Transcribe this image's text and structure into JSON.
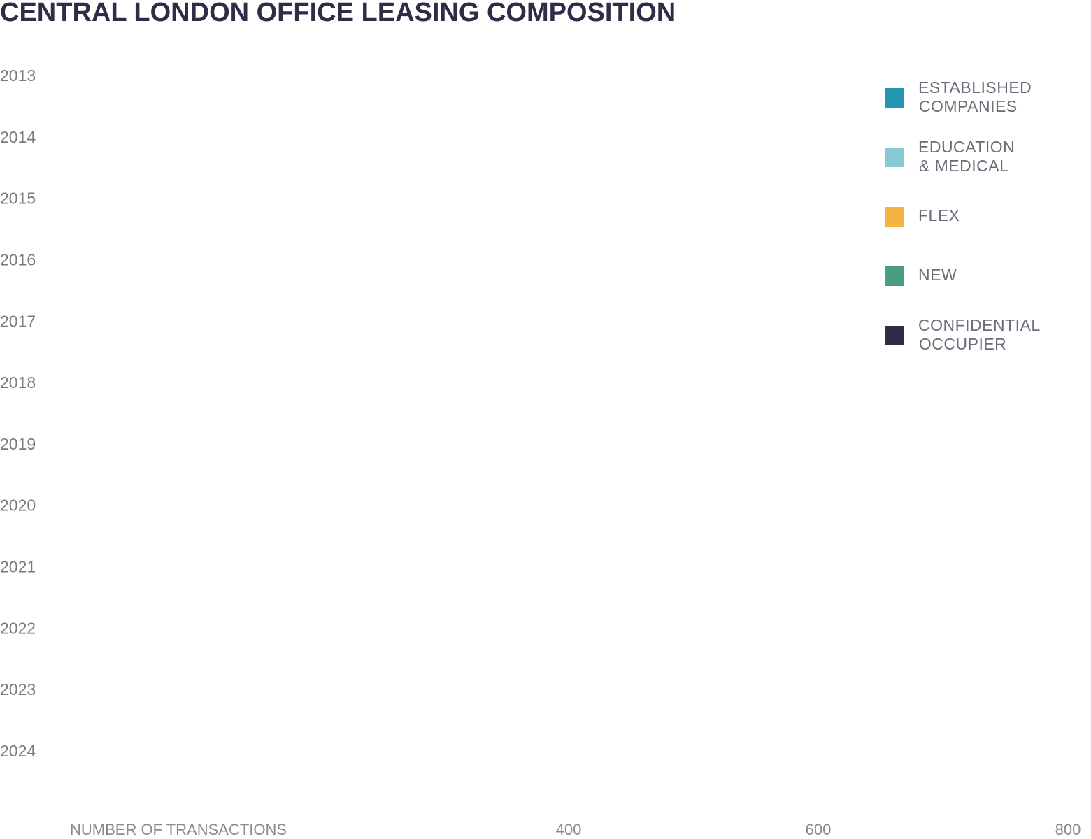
{
  "chart_data": {
    "type": "stacked_bar_horizontal",
    "title": "CENTRAL LONDON OFFICE LEASING COMPOSITION",
    "x_label": "NUMBER OF TRANSACTIONS",
    "categories": [
      "2013",
      "2014",
      "2015",
      "2016",
      "2017",
      "2018",
      "2019",
      "2020",
      "2021",
      "2022",
      "2023",
      "2024"
    ],
    "series": [
      {
        "name": "ESTABLISHED COMPANIES",
        "color": "#2596b0",
        "values": [
          null,
          null,
          null,
          null,
          null,
          null,
          null,
          null,
          null,
          null,
          null,
          null
        ]
      },
      {
        "name": "EDUCATION & MEDICAL",
        "color": "#88c9d6",
        "values": [
          null,
          null,
          null,
          null,
          null,
          null,
          null,
          null,
          null,
          null,
          null,
          null
        ]
      },
      {
        "name": "FLEX",
        "color": "#f2b544",
        "values": [
          null,
          null,
          null,
          null,
          null,
          null,
          null,
          null,
          null,
          null,
          null,
          null
        ]
      },
      {
        "name": "NEW",
        "color": "#4a9e80",
        "values": [
          null,
          null,
          null,
          null,
          null,
          null,
          null,
          null,
          null,
          null,
          null,
          null
        ]
      },
      {
        "name": "CONFIDENTIAL OCCUPIER",
        "color": "#2e2d48",
        "values": [
          null,
          null,
          null,
          null,
          null,
          null,
          null,
          null,
          null,
          null,
          null,
          null
        ]
      }
    ],
    "xlim": [
      0,
      800
    ],
    "xticks": [
      400,
      600,
      800
    ],
    "legend": "right"
  }
}
